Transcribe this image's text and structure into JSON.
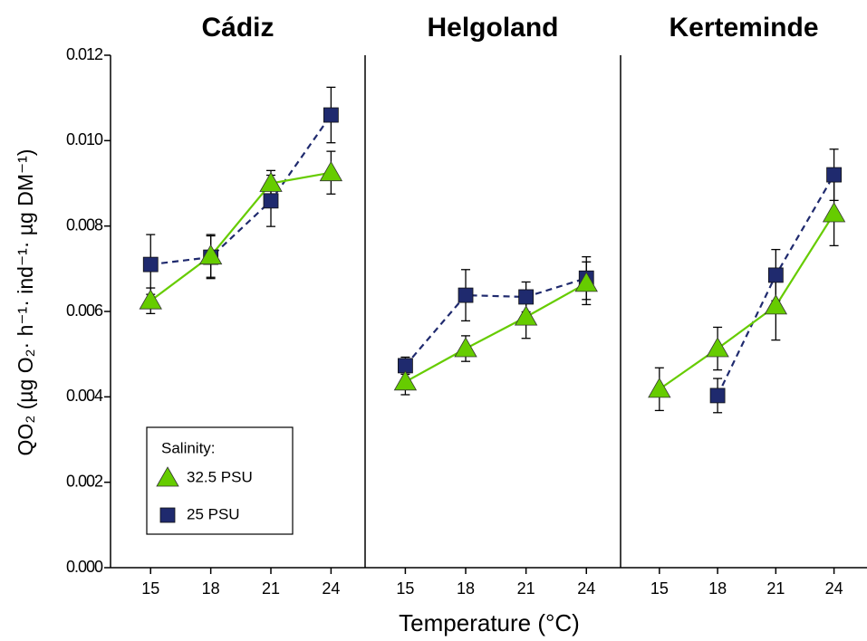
{
  "chart_data": [
    {
      "type": "line",
      "title": "Cádiz",
      "ylabel": "QO₂ (µg O₂· h⁻¹· ind⁻¹· µg DM⁻¹)",
      "x": [
        15,
        18,
        21,
        24
      ],
      "xlim": [
        13,
        25.7
      ],
      "xticks": [
        15,
        18,
        21,
        24
      ],
      "ylim": [
        0,
        0.012
      ],
      "yticks": [
        {
          "value": 0,
          "label": "0.000"
        },
        0.002,
        0.004,
        0.006,
        0.008,
        {
          "value": 0.01,
          "label": "0.010"
        },
        0.012
      ],
      "legend": "lower left",
      "legend_title": "Salinity:",
      "series": [
        {
          "name": "32.5 PSU",
          "color": "#66cc00",
          "marker": "triangle",
          "linestyle": "solid",
          "values": [
            0.00625,
            0.0073,
            0.009,
            0.00925
          ],
          "errors": [
            0.0003,
            0.0005,
            0.0003,
            0.0005
          ]
        },
        {
          "name": "25 PSU",
          "color": "#1f2a6e",
          "marker": "square",
          "linestyle": "dashed",
          "values": [
            0.0071,
            0.00727,
            0.00859,
            0.0106
          ],
          "errors": [
            0.0007,
            0.0005,
            0.0006,
            0.00065
          ]
        }
      ]
    },
    {
      "type": "line",
      "title": "Helgoland",
      "xlabel": "Temperature (°C)",
      "x": [
        15,
        18,
        21,
        24
      ],
      "xlim": [
        13,
        25.7
      ],
      "xticks": [
        15,
        18,
        21,
        24
      ],
      "ylim": [
        0,
        0.012
      ],
      "series": [
        {
          "color": "#66cc00",
          "marker": "triangle",
          "linestyle": "solid",
          "values": [
            0.00435,
            0.00513,
            0.00587,
            0.00666
          ],
          "errors": [
            0.0003,
            0.0003,
            0.0005,
            0.0005
          ]
        },
        {
          "color": "#1f2a6e",
          "marker": "square",
          "linestyle": "dashed",
          "values": [
            0.00473,
            0.00638,
            0.00634,
            0.00678
          ],
          "errors": [
            0.0002,
            0.0006,
            0.00035,
            0.0005
          ]
        }
      ]
    },
    {
      "type": "line",
      "title": "Kerteminde",
      "x": [
        15,
        18,
        21,
        24
      ],
      "xlim": [
        13,
        25.7
      ],
      "xticks": [
        15,
        18,
        21,
        24
      ],
      "ylim": [
        0,
        0.012
      ],
      "series": [
        {
          "color": "#66cc00",
          "marker": "triangle",
          "linestyle": "solid",
          "values": [
            0.00418,
            0.00513,
            0.00613,
            0.00829
          ],
          "errors": [
            0.0005,
            0.0005,
            0.0008,
            0.00075
          ]
        },
        {
          "color": "#1f2a6e",
          "marker": "square",
          "linestyle": "dashed",
          "values": [
            null,
            0.00403,
            0.00685,
            0.0092
          ],
          "errors": [
            null,
            0.0004,
            0.0006,
            0.0006
          ]
        }
      ]
    }
  ]
}
